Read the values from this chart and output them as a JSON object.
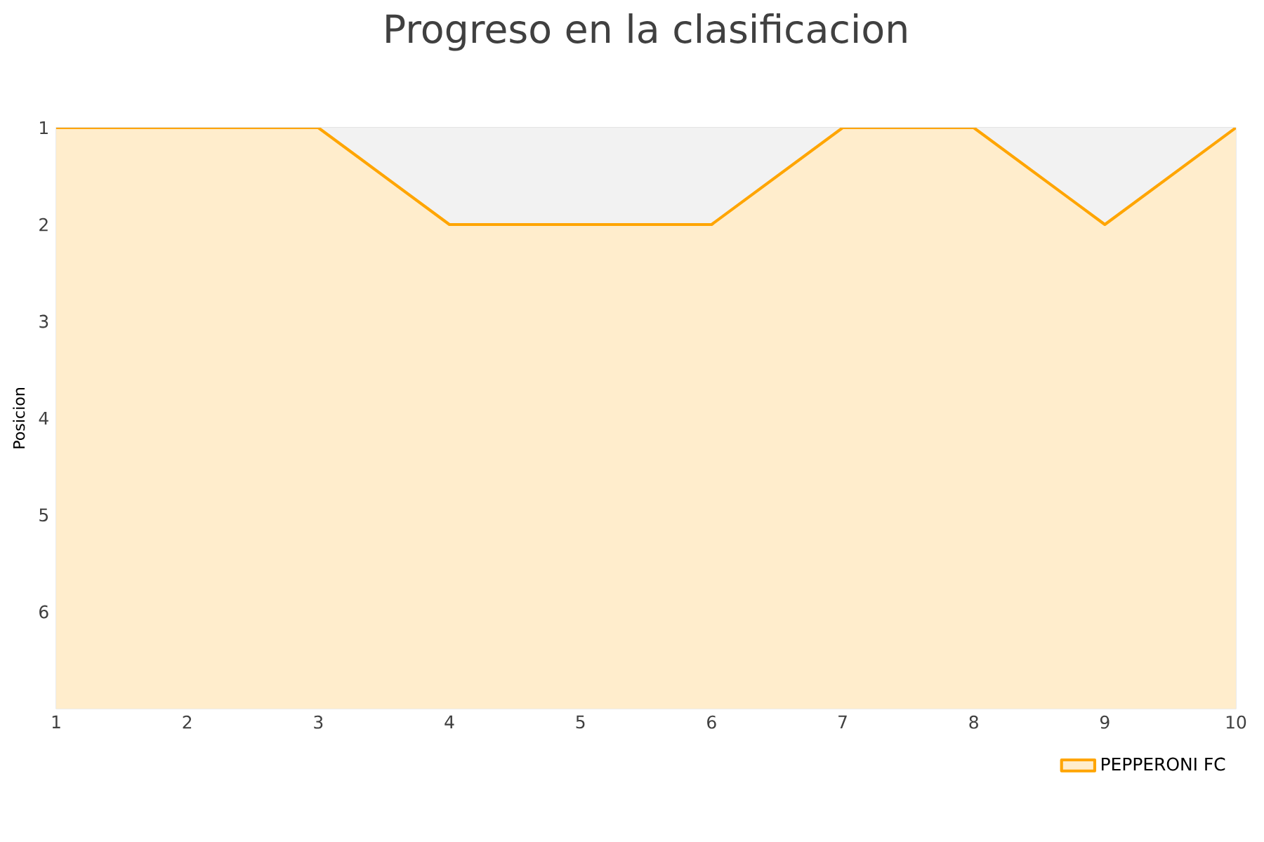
{
  "chart_data": {
    "type": "area",
    "title": "Progreso en la clasificacion",
    "ylabel": "Posicion",
    "x": [
      1,
      2,
      3,
      4,
      5,
      6,
      7,
      8,
      9,
      10
    ],
    "series": [
      {
        "name": "PEPPERONI FC",
        "color": "#ffa500",
        "values": [
          1,
          1,
          1,
          2,
          2,
          2,
          1,
          1,
          2,
          1
        ]
      }
    ],
    "xlim": [
      1,
      10
    ],
    "xticks": [
      1,
      2,
      3,
      4,
      5,
      6,
      7,
      8,
      9,
      10
    ],
    "ylim": [
      7,
      1
    ],
    "yticks": [
      1,
      2,
      3,
      4,
      5,
      6
    ],
    "grid": "y",
    "legend": "bottom right"
  }
}
